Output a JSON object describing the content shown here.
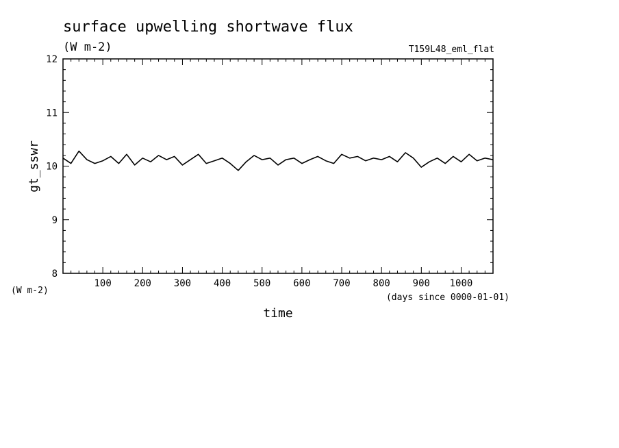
{
  "chart_data": {
    "type": "line",
    "title": "surface upwelling shortwave flux",
    "units": "(W m-2)",
    "run_label": "T159L48_eml_flat",
    "ylabel": "gt_sswr",
    "y_units": "(W m-2)",
    "xlabel": "time",
    "x_units": "(days since 0000-01-01)",
    "xlim": [
      0,
      1080
    ],
    "ylim": [
      8,
      12
    ],
    "x_ticks": [
      100,
      200,
      300,
      400,
      500,
      600,
      700,
      800,
      900,
      1000
    ],
    "x_tick_labels": [
      "100",
      "200",
      "300",
      "400",
      "500",
      "600",
      "700",
      "800",
      "900",
      "1000"
    ],
    "y_ticks": [
      8,
      9,
      10,
      11,
      12
    ],
    "y_tick_labels": [
      "8",
      "9",
      "10",
      "11",
      "12"
    ],
    "series": [
      {
        "x": [
          0,
          20,
          40,
          60,
          80,
          100,
          120,
          140,
          160,
          180,
          200,
          220,
          240,
          260,
          280,
          300,
          320,
          340,
          360,
          380,
          400,
          420,
          440,
          460,
          480,
          500,
          520,
          540,
          560,
          580,
          600,
          620,
          640,
          660,
          680,
          700,
          720,
          740,
          760,
          780,
          800,
          820,
          840,
          860,
          880,
          900,
          920,
          940,
          960,
          980,
          1000,
          1020,
          1040,
          1060,
          1080
        ],
        "values": [
          10.15,
          10.05,
          10.28,
          10.12,
          10.05,
          10.1,
          10.18,
          10.05,
          10.22,
          10.02,
          10.15,
          10.08,
          10.2,
          10.12,
          10.18,
          10.02,
          10.12,
          10.22,
          10.05,
          10.1,
          10.15,
          10.05,
          9.92,
          10.08,
          10.2,
          10.12,
          10.15,
          10.02,
          10.12,
          10.15,
          10.05,
          10.12,
          10.18,
          10.1,
          10.05,
          10.22,
          10.15,
          10.18,
          10.1,
          10.15,
          10.12,
          10.18,
          10.08,
          10.25,
          10.15,
          9.98,
          10.08,
          10.15,
          10.05,
          10.18,
          10.08,
          10.22,
          10.1,
          10.15,
          10.12
        ]
      }
    ]
  }
}
